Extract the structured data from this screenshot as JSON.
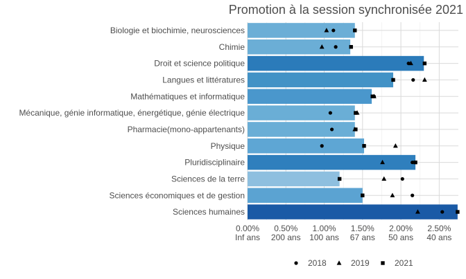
{
  "chart_data": {
    "type": "bar",
    "title": "Promotion à la session synchronisée 2021",
    "xlabel": "",
    "ylabel": "",
    "x_range": [
      0,
      2.75
    ],
    "x_ticks": [
      {
        "value": 0.0,
        "label": "0.00%",
        "sublabel": "Inf ans"
      },
      {
        "value": 0.5,
        "label": "0.50%",
        "sublabel": "200 ans"
      },
      {
        "value": 1.0,
        "label": "1.00%",
        "sublabel": "100 ans"
      },
      {
        "value": 1.5,
        "label": "1.50%",
        "sublabel": "67 ans"
      },
      {
        "value": 2.0,
        "label": "2.00%",
        "sublabel": "50 ans"
      },
      {
        "value": 2.5,
        "label": "2.50%",
        "sublabel": "40 ans"
      }
    ],
    "grid": true,
    "legend_position": "bottom",
    "categories": [
      "Biologie et biochimie, neurosciences",
      "Chimie",
      "Droit et science politique",
      "Langues et littératures",
      "Mathématiques et informatique",
      "Mécanique, génie informatique, énergétique, génie électrique",
      "Pharmacie(mono-appartenants)",
      "Physique",
      "Pluridisciplinaire",
      "Sciences de la terre",
      "Sciences économiques et de gestion",
      "Sciences humaines"
    ],
    "bar_values": [
      1.4,
      1.34,
      2.3,
      1.9,
      1.62,
      1.4,
      1.4,
      1.52,
      2.19,
      1.2,
      1.5,
      2.74
    ],
    "bar_colors": [
      "#6baed6",
      "#6baed6",
      "#2b7bba",
      "#4292c6",
      "#4a97cc",
      "#6aaed6",
      "#6aaed6",
      "#5ea6d4",
      "#2f7fbd",
      "#8ebfdf",
      "#5ba3d2",
      "#1a5aa6"
    ],
    "series": [
      {
        "name": "2018",
        "marker": "circle",
        "values": [
          1.12,
          1.15,
          2.1,
          2.16,
          1.65,
          1.08,
          1.1,
          0.97,
          2.15,
          2.02,
          2.15,
          2.54
        ]
      },
      {
        "name": "2019",
        "marker": "triangle",
        "values": [
          1.03,
          0.97,
          2.13,
          2.31,
          1.65,
          1.43,
          1.4,
          1.93,
          1.76,
          1.78,
          1.89,
          2.22
        ]
      },
      {
        "name": "2021",
        "marker": "square",
        "values": [
          1.4,
          1.35,
          2.31,
          1.9,
          1.63,
          1.41,
          1.41,
          1.52,
          2.19,
          1.2,
          1.5,
          2.74
        ]
      }
    ]
  }
}
